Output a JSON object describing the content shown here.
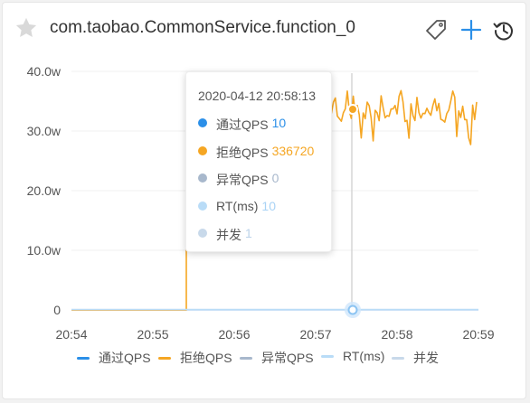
{
  "header": {
    "title": "com.taobao.CommonService.function_0",
    "star_icon": "star-icon",
    "tag_icon": "tag-icon",
    "add_icon": "plus-icon",
    "history_icon": "history-icon"
  },
  "colors": {
    "pass": "#2b8fe8",
    "block": "#f5a623",
    "exception": "#a8b8cc",
    "rt": "#b9dcf7",
    "concurrency": "#c8d9ea"
  },
  "chart_data": {
    "type": "line",
    "x": [
      "20:54",
      "20:55",
      "20:56",
      "20:57",
      "20:58",
      "20:59"
    ],
    "y_ticks": [
      "40.0w",
      "30.0w",
      "20.0w",
      "10.0w",
      "0"
    ],
    "ylim": [
      0,
      400000
    ],
    "series": [
      {
        "name": "通过QPS",
        "summary": "about 10 throughout"
      },
      {
        "name": "拒绝QPS",
        "summary": "0 until ~20:55:24, then jumps to ~330000 and fluctuates between ~250000 and ~370000 until 20:59"
      },
      {
        "name": "异常QPS",
        "summary": "0 throughout"
      },
      {
        "name": "RT(ms)",
        "summary": "about 10 throughout"
      },
      {
        "name": "并发",
        "summary": "about 1 throughout"
      }
    ],
    "crosshair_time": "20:57:30"
  },
  "tooltip": {
    "time": "2020-04-12 20:58:13",
    "rows": [
      {
        "label": "通过QPS",
        "value": "10"
      },
      {
        "label": "拒绝QPS",
        "value": "336720"
      },
      {
        "label": "异常QPS",
        "value": "0"
      },
      {
        "label": "RT(ms)",
        "value": "10"
      },
      {
        "label": "并发",
        "value": "1"
      }
    ]
  },
  "legend": [
    "通过QPS",
    "拒绝QPS",
    "异常QPS",
    "RT(ms)",
    "并发"
  ]
}
